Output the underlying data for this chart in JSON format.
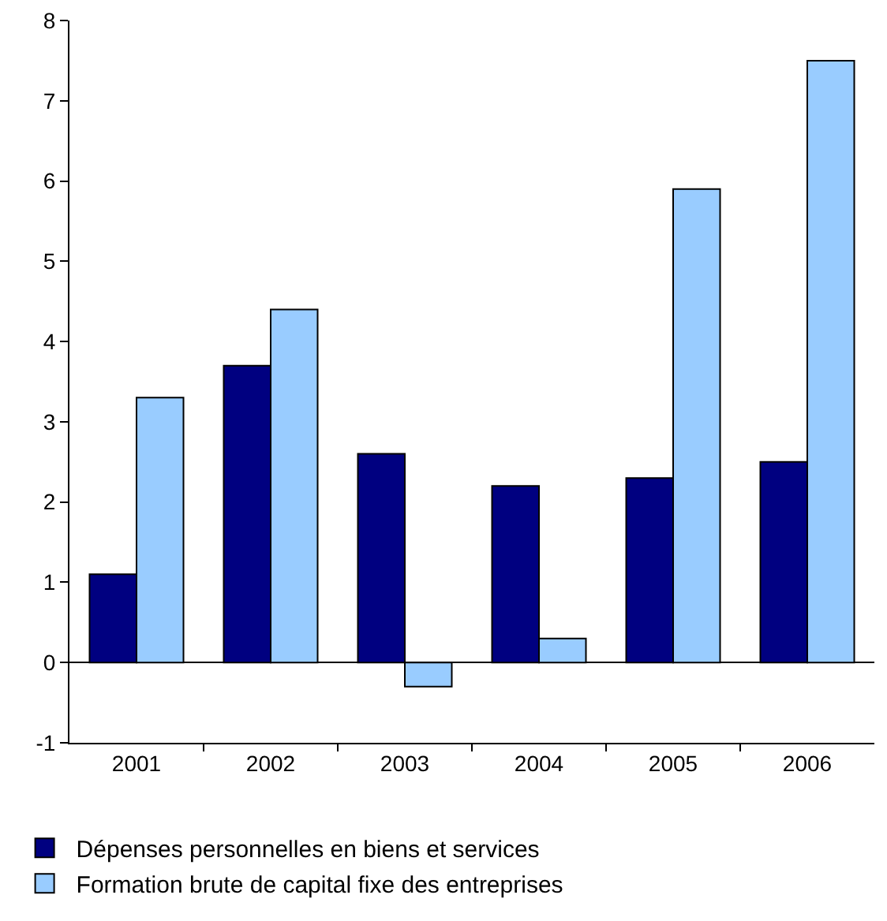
{
  "chart_data": {
    "type": "bar",
    "categories": [
      "2001",
      "2002",
      "2003",
      "2004",
      "2005",
      "2006"
    ],
    "series": [
      {
        "name": "Dépenses personnelles en biens et services",
        "color": "#000080",
        "values": [
          1.1,
          3.7,
          2.6,
          2.2,
          2.3,
          2.5
        ]
      },
      {
        "name": "Formation brute de capital fixe des entreprises",
        "color": "#99ccff",
        "values": [
          3.3,
          4.4,
          -0.3,
          0.3,
          5.9,
          7.5
        ]
      }
    ],
    "ylim": [
      -1,
      8
    ],
    "yticks": [
      -1,
      0,
      1,
      2,
      3,
      4,
      5,
      6,
      7,
      8
    ],
    "legend": "bottom left"
  }
}
